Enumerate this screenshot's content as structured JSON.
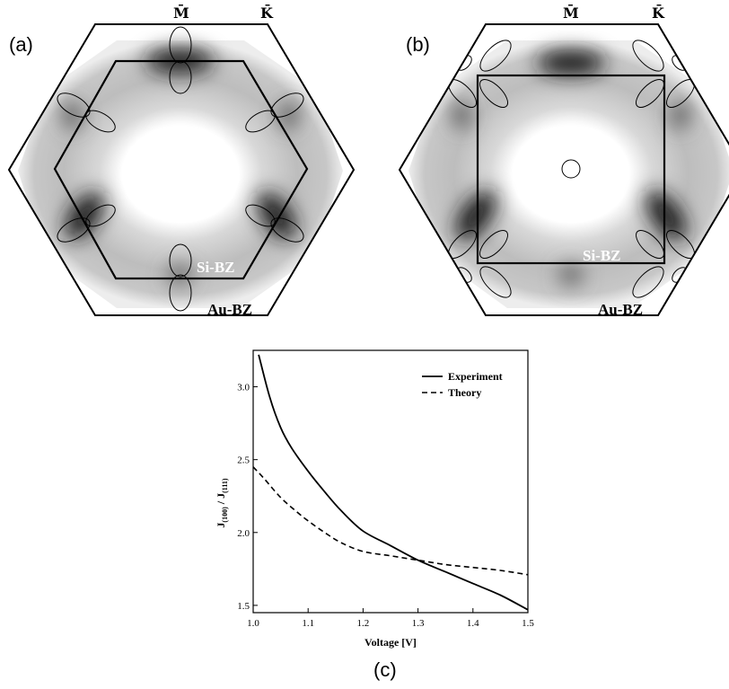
{
  "panels": [
    {
      "label": "(a)",
      "sym_m": "M̄",
      "sym_k": "K̄",
      "inner_bz": "Si-BZ",
      "outer_bz": "Au-BZ",
      "inner_shape": "hexagon"
    },
    {
      "label": "(b)",
      "sym_m": "M̄",
      "sym_k": "K̄",
      "inner_bz": "Si-BZ",
      "outer_bz": "Au-BZ",
      "inner_shape": "square"
    }
  ],
  "caption_c": "(c)",
  "chart_data": {
    "type": "line",
    "xlabel": "Voltage [V]",
    "ylabel_main": "J",
    "ylabel_sub1": "(100)",
    "ylabel_sep": " / J",
    "ylabel_sub2": "(111)",
    "xlim": [
      1.0,
      1.5
    ],
    "ylim": [
      1.45,
      3.25
    ],
    "x_ticks": [
      "1.0",
      "1.1",
      "1.2",
      "1.3",
      "1.4",
      "1.5"
    ],
    "y_ticks": [
      "1.5",
      "2.0",
      "2.5",
      "3.0"
    ],
    "series": [
      {
        "name": "Experiment",
        "style": "solid",
        "x": [
          1.01,
          1.03,
          1.05,
          1.07,
          1.1,
          1.13,
          1.16,
          1.2,
          1.25,
          1.3,
          1.35,
          1.4,
          1.45,
          1.5
        ],
        "y": [
          3.22,
          2.93,
          2.72,
          2.58,
          2.42,
          2.28,
          2.15,
          2.01,
          1.91,
          1.81,
          1.73,
          1.65,
          1.57,
          1.47
        ]
      },
      {
        "name": "Theory",
        "style": "dashed",
        "x": [
          1.0,
          1.02,
          1.05,
          1.08,
          1.1,
          1.13,
          1.16,
          1.2,
          1.25,
          1.3,
          1.35,
          1.4,
          1.45,
          1.5
        ],
        "y": [
          2.45,
          2.37,
          2.24,
          2.14,
          2.08,
          2.0,
          1.93,
          1.87,
          1.84,
          1.81,
          1.78,
          1.76,
          1.74,
          1.71
        ]
      }
    ]
  }
}
